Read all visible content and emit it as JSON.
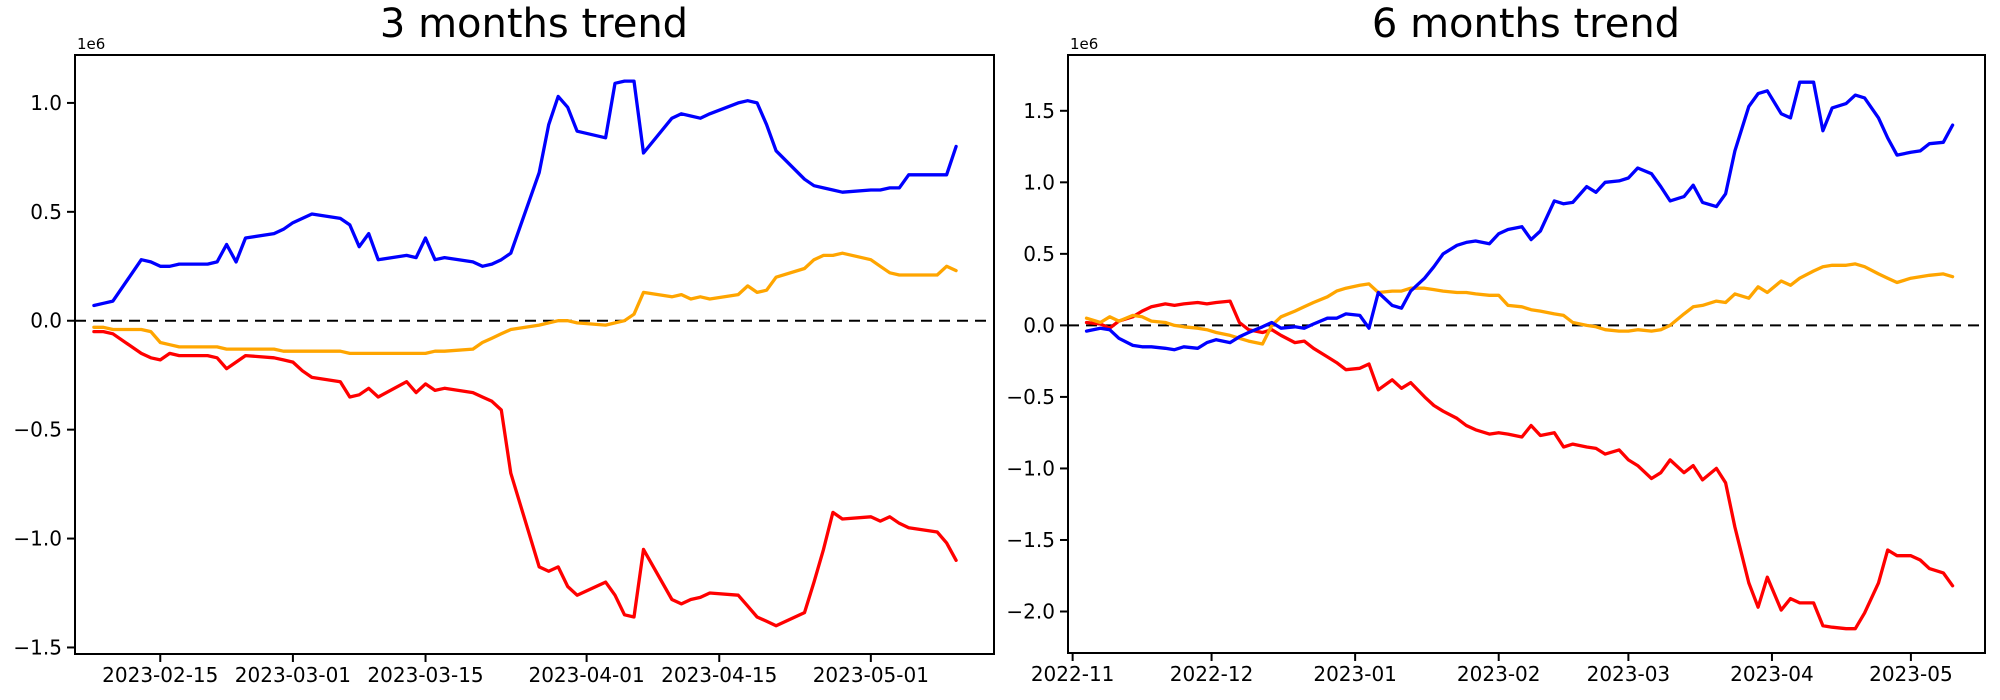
{
  "figure": {
    "background": "#ffffff"
  },
  "chart_data": [
    {
      "type": "line",
      "title": "3 months trend",
      "offset_label": "1e6",
      "xlabel": "",
      "ylabel": "",
      "grid": false,
      "legend": null,
      "zero_line": {
        "style": "dashed",
        "color": "#000000",
        "y": 0
      },
      "ylim": [
        -1.53,
        1.22
      ],
      "xlim": [
        "2023-02-06",
        "2023-05-14"
      ],
      "yticks": {
        "values": [
          1.0,
          0.5,
          0.0,
          -0.5,
          -1.0,
          -1.5
        ],
        "labels": [
          "1.0",
          "0.5",
          "0.0",
          "−0.5",
          "−1.0",
          "−1.5"
        ]
      },
      "xticks": [
        {
          "date": "2023-02-15",
          "label": "2023-02-15"
        },
        {
          "date": "2023-03-01",
          "label": "2023-03-01"
        },
        {
          "date": "2023-03-15",
          "label": "2023-03-15"
        },
        {
          "date": "2023-04-01",
          "label": "2023-04-01"
        },
        {
          "date": "2023-04-15",
          "label": "2023-04-15"
        },
        {
          "date": "2023-05-01",
          "label": "2023-05-01"
        }
      ],
      "x": [
        "2023-02-08",
        "2023-02-09",
        "2023-02-10",
        "2023-02-13",
        "2023-02-14",
        "2023-02-15",
        "2023-02-16",
        "2023-02-17",
        "2023-02-20",
        "2023-02-21",
        "2023-02-22",
        "2023-02-23",
        "2023-02-24",
        "2023-02-27",
        "2023-02-28",
        "2023-03-01",
        "2023-03-02",
        "2023-03-03",
        "2023-03-06",
        "2023-03-07",
        "2023-03-08",
        "2023-03-09",
        "2023-03-10",
        "2023-03-13",
        "2023-03-14",
        "2023-03-15",
        "2023-03-16",
        "2023-03-17",
        "2023-03-20",
        "2023-03-21",
        "2023-03-22",
        "2023-03-23",
        "2023-03-24",
        "2023-03-27",
        "2023-03-28",
        "2023-03-29",
        "2023-03-30",
        "2023-03-31",
        "2023-04-03",
        "2023-04-04",
        "2023-04-05",
        "2023-04-06",
        "2023-04-07",
        "2023-04-10",
        "2023-04-11",
        "2023-04-12",
        "2023-04-13",
        "2023-04-14",
        "2023-04-17",
        "2023-04-18",
        "2023-04-19",
        "2023-04-20",
        "2023-04-21",
        "2023-04-24",
        "2023-04-25",
        "2023-04-26",
        "2023-04-27",
        "2023-04-28",
        "2023-05-01",
        "2023-05-02",
        "2023-05-03",
        "2023-05-04",
        "2023-05-05",
        "2023-05-08",
        "2023-05-09",
        "2023-05-10"
      ],
      "series": [
        {
          "name": "red-line",
          "color": "#ff0000",
          "unit": "1e6",
          "values": [
            -0.05,
            -0.05,
            -0.06,
            -0.15,
            -0.17,
            -0.18,
            -0.15,
            -0.16,
            -0.16,
            -0.17,
            -0.22,
            -0.19,
            -0.16,
            -0.17,
            -0.18,
            -0.19,
            -0.23,
            -0.26,
            -0.28,
            -0.35,
            -0.34,
            -0.31,
            -0.35,
            -0.28,
            -0.33,
            -0.29,
            -0.32,
            -0.31,
            -0.33,
            -0.35,
            -0.37,
            -0.41,
            -0.7,
            -1.13,
            -1.15,
            -1.13,
            -1.22,
            -1.26,
            -1.2,
            -1.26,
            -1.35,
            -1.36,
            -1.05,
            -1.28,
            -1.3,
            -1.28,
            -1.27,
            -1.25,
            -1.26,
            -1.31,
            -1.36,
            -1.38,
            -1.4,
            -1.34,
            -1.2,
            -1.05,
            -0.88,
            -0.91,
            -0.9,
            -0.92,
            -0.9,
            -0.93,
            -0.95,
            -0.97,
            -1.02,
            -1.1
          ]
        },
        {
          "name": "orange-line",
          "color": "#ffa500",
          "unit": "1e6",
          "values": [
            -0.03,
            -0.03,
            -0.04,
            -0.04,
            -0.05,
            -0.1,
            -0.11,
            -0.12,
            -0.12,
            -0.12,
            -0.13,
            -0.13,
            -0.13,
            -0.13,
            -0.14,
            -0.14,
            -0.14,
            -0.14,
            -0.14,
            -0.15,
            -0.15,
            -0.15,
            -0.15,
            -0.15,
            -0.15,
            -0.15,
            -0.14,
            -0.14,
            -0.13,
            -0.1,
            -0.08,
            -0.06,
            -0.04,
            -0.02,
            -0.01,
            0.0,
            0.0,
            -0.01,
            -0.02,
            -0.01,
            0.0,
            0.03,
            0.13,
            0.11,
            0.12,
            0.1,
            0.11,
            0.1,
            0.12,
            0.16,
            0.13,
            0.14,
            0.2,
            0.24,
            0.28,
            0.3,
            0.3,
            0.31,
            0.28,
            0.25,
            0.22,
            0.21,
            0.21,
            0.21,
            0.25,
            0.23
          ]
        },
        {
          "name": "blue-line",
          "color": "#0000ff",
          "unit": "1e6",
          "values": [
            0.07,
            0.08,
            0.09,
            0.28,
            0.27,
            0.25,
            0.25,
            0.26,
            0.26,
            0.27,
            0.35,
            0.27,
            0.38,
            0.4,
            0.42,
            0.45,
            0.47,
            0.49,
            0.47,
            0.44,
            0.34,
            0.4,
            0.28,
            0.3,
            0.29,
            0.38,
            0.28,
            0.29,
            0.27,
            0.25,
            0.26,
            0.28,
            0.31,
            0.68,
            0.9,
            1.03,
            0.98,
            0.87,
            0.84,
            1.09,
            1.1,
            1.1,
            0.77,
            0.93,
            0.95,
            0.94,
            0.93,
            0.95,
            1.0,
            1.01,
            1.0,
            0.9,
            0.78,
            0.65,
            0.62,
            0.61,
            0.6,
            0.59,
            0.6,
            0.6,
            0.61,
            0.61,
            0.67,
            0.67,
            0.67,
            0.8
          ]
        }
      ]
    },
    {
      "type": "line",
      "title": "6 months trend",
      "offset_label": "1e6",
      "xlabel": "",
      "ylabel": "",
      "grid": false,
      "legend": null,
      "zero_line": {
        "style": "dashed",
        "color": "#000000",
        "y": 0
      },
      "ylim": [
        -2.29,
        1.89
      ],
      "xlim": [
        "2022-10-31",
        "2023-05-17"
      ],
      "yticks": {
        "values": [
          1.5,
          1.0,
          0.5,
          0.0,
          -0.5,
          -1.0,
          -1.5,
          -2.0
        ],
        "labels": [
          "1.5",
          "1.0",
          "0.5",
          "0.0",
          "−0.5",
          "−1.0",
          "−1.5",
          "−2.0"
        ]
      },
      "xticks": [
        {
          "date": "2022-11-01",
          "label": "2022-11"
        },
        {
          "date": "2022-12-01",
          "label": "2022-12"
        },
        {
          "date": "2023-01-01",
          "label": "2023-01"
        },
        {
          "date": "2023-02-01",
          "label": "2023-02"
        },
        {
          "date": "2023-03-01",
          "label": "2023-03"
        },
        {
          "date": "2023-04-01",
          "label": "2023-04"
        },
        {
          "date": "2023-05-01",
          "label": "2023-05"
        }
      ],
      "x": [
        "2022-11-04",
        "2022-11-07",
        "2022-11-09",
        "2022-11-11",
        "2022-11-14",
        "2022-11-16",
        "2022-11-18",
        "2022-11-21",
        "2022-11-23",
        "2022-11-25",
        "2022-11-28",
        "2022-11-30",
        "2022-12-02",
        "2022-12-05",
        "2022-12-07",
        "2022-12-09",
        "2022-12-12",
        "2022-12-14",
        "2022-12-16",
        "2022-12-19",
        "2022-12-21",
        "2022-12-23",
        "2022-12-26",
        "2022-12-28",
        "2022-12-30",
        "2023-01-02",
        "2023-01-04",
        "2023-01-06",
        "2023-01-09",
        "2023-01-11",
        "2023-01-13",
        "2023-01-16",
        "2023-01-18",
        "2023-01-20",
        "2023-01-23",
        "2023-01-25",
        "2023-01-27",
        "2023-01-30",
        "2023-02-01",
        "2023-02-03",
        "2023-02-06",
        "2023-02-08",
        "2023-02-10",
        "2023-02-13",
        "2023-02-15",
        "2023-02-17",
        "2023-02-20",
        "2023-02-22",
        "2023-02-24",
        "2023-02-27",
        "2023-03-01",
        "2023-03-03",
        "2023-03-06",
        "2023-03-08",
        "2023-03-10",
        "2023-03-13",
        "2023-03-15",
        "2023-03-17",
        "2023-03-20",
        "2023-03-22",
        "2023-03-24",
        "2023-03-27",
        "2023-03-29",
        "2023-03-31",
        "2023-04-03",
        "2023-04-05",
        "2023-04-07",
        "2023-04-10",
        "2023-04-12",
        "2023-04-14",
        "2023-04-17",
        "2023-04-19",
        "2023-04-21",
        "2023-04-24",
        "2023-04-26",
        "2023-04-28",
        "2023-05-01",
        "2023-05-03",
        "2023-05-05",
        "2023-05-08",
        "2023-05-10"
      ],
      "series": [
        {
          "name": "red-line",
          "color": "#ff0000",
          "unit": "1e6",
          "values": [
            0.02,
            0.01,
            -0.02,
            0.03,
            0.06,
            0.1,
            0.13,
            0.15,
            0.14,
            0.15,
            0.16,
            0.15,
            0.16,
            0.17,
            0.02,
            -0.03,
            -0.05,
            -0.03,
            -0.07,
            -0.12,
            -0.11,
            -0.16,
            -0.22,
            -0.26,
            -0.31,
            -0.3,
            -0.27,
            -0.45,
            -0.38,
            -0.44,
            -0.4,
            -0.5,
            -0.56,
            -0.6,
            -0.65,
            -0.7,
            -0.73,
            -0.76,
            -0.75,
            -0.76,
            -0.78,
            -0.7,
            -0.77,
            -0.75,
            -0.85,
            -0.83,
            -0.85,
            -0.86,
            -0.9,
            -0.87,
            -0.94,
            -0.98,
            -1.07,
            -1.03,
            -0.94,
            -1.03,
            -0.98,
            -1.08,
            -1.0,
            -1.1,
            -1.41,
            -1.8,
            -1.97,
            -1.76,
            -1.99,
            -1.91,
            -1.94,
            -1.94,
            -2.1,
            -2.11,
            -2.12,
            -2.12,
            -2.01,
            -1.8,
            -1.57,
            -1.61,
            -1.61,
            -1.64,
            -1.7,
            -1.73,
            -1.82
          ]
        },
        {
          "name": "orange-line",
          "color": "#ffa500",
          "unit": "1e6",
          "values": [
            0.05,
            0.02,
            0.06,
            0.03,
            0.07,
            0.06,
            0.03,
            0.02,
            0.0,
            -0.01,
            -0.02,
            -0.03,
            -0.05,
            -0.07,
            -0.09,
            -0.11,
            -0.13,
            0.0,
            0.06,
            0.1,
            0.13,
            0.16,
            0.2,
            0.24,
            0.26,
            0.28,
            0.29,
            0.23,
            0.24,
            0.24,
            0.26,
            0.26,
            0.25,
            0.24,
            0.23,
            0.23,
            0.22,
            0.21,
            0.21,
            0.14,
            0.13,
            0.11,
            0.1,
            0.08,
            0.07,
            0.02,
            0.0,
            -0.01,
            -0.03,
            -0.04,
            -0.04,
            -0.03,
            -0.04,
            -0.03,
            0.0,
            0.08,
            0.13,
            0.14,
            0.17,
            0.16,
            0.22,
            0.19,
            0.27,
            0.23,
            0.31,
            0.28,
            0.33,
            0.38,
            0.41,
            0.42,
            0.42,
            0.43,
            0.41,
            0.36,
            0.33,
            0.3,
            0.33,
            0.34,
            0.35,
            0.36,
            0.34
          ]
        },
        {
          "name": "blue-line",
          "color": "#0000ff",
          "unit": "1e6",
          "values": [
            -0.04,
            -0.02,
            -0.03,
            -0.09,
            -0.14,
            -0.15,
            -0.15,
            -0.16,
            -0.17,
            -0.15,
            -0.16,
            -0.12,
            -0.1,
            -0.12,
            -0.08,
            -0.05,
            -0.01,
            0.02,
            -0.02,
            -0.01,
            -0.02,
            0.01,
            0.05,
            0.05,
            0.08,
            0.07,
            -0.02,
            0.23,
            0.14,
            0.12,
            0.24,
            0.33,
            0.41,
            0.5,
            0.56,
            0.58,
            0.59,
            0.57,
            0.64,
            0.67,
            0.69,
            0.6,
            0.66,
            0.87,
            0.85,
            0.86,
            0.97,
            0.93,
            1.0,
            1.01,
            1.03,
            1.1,
            1.06,
            0.97,
            0.87,
            0.9,
            0.98,
            0.86,
            0.83,
            0.92,
            1.22,
            1.53,
            1.62,
            1.64,
            1.48,
            1.45,
            1.7,
            1.7,
            1.36,
            1.52,
            1.55,
            1.61,
            1.59,
            1.45,
            1.31,
            1.19,
            1.21,
            1.22,
            1.27,
            1.28,
            1.4
          ]
        }
      ]
    }
  ]
}
